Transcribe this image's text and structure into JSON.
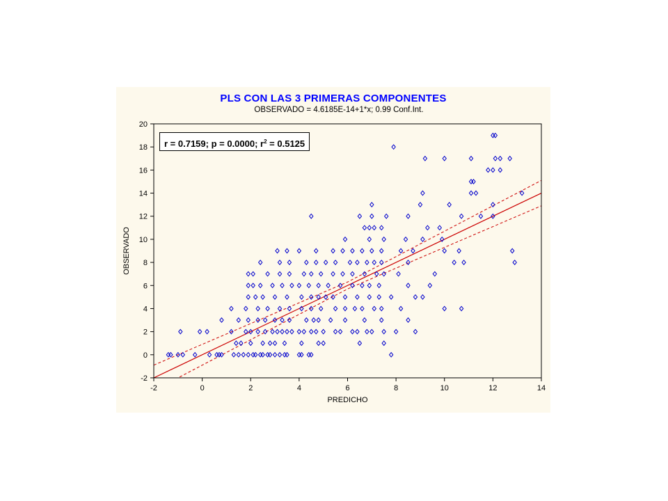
{
  "chart_data": {
    "type": "scatter",
    "title": "PLS CON LAS 3 PRIMERAS COMPONENTES",
    "subtitle": "OBSERVADO = 4.6185E-14+1*x; 0.99 Conf.Int.",
    "xlabel": "PREDICHO",
    "ylabel": "OBSERVADO",
    "xlim": [
      -2,
      14
    ],
    "ylim": [
      -2,
      20
    ],
    "xticks": [
      -2,
      0,
      2,
      4,
      6,
      8,
      10,
      12,
      14
    ],
    "yticks": [
      -2,
      0,
      2,
      4,
      6,
      8,
      10,
      12,
      14,
      16,
      18,
      20
    ],
    "stats": {
      "prefix": "r = 0.7159; p = 0.0000; r",
      "sup": "2",
      "suffix": " = 0.5125"
    },
    "regression": {
      "intercept": 0,
      "slope": 1
    },
    "conf_band": {
      "level": 0.99,
      "upper": [
        [
          -2,
          -0.9
        ],
        [
          6,
          6.3
        ],
        [
          14,
          15.1
        ]
      ],
      "lower": [
        [
          -2,
          -3.1
        ],
        [
          6,
          5.7
        ],
        [
          14,
          12.9
        ]
      ]
    },
    "grid": false,
    "colors": {
      "points": "#0000cc",
      "line": "#cc0000",
      "title": "#0000ff",
      "panel": "#fdf9ec"
    },
    "points": [
      [
        -1.4,
        0
      ],
      [
        -1.3,
        0
      ],
      [
        -1.0,
        0
      ],
      [
        -0.8,
        0
      ],
      [
        -0.3,
        0
      ],
      [
        0.3,
        0
      ],
      [
        0.6,
        0
      ],
      [
        0.7,
        0
      ],
      [
        0.8,
        0
      ],
      [
        1.3,
        0
      ],
      [
        1.5,
        0
      ],
      [
        1.7,
        0
      ],
      [
        1.9,
        0
      ],
      [
        2.1,
        0
      ],
      [
        2.2,
        0
      ],
      [
        2.4,
        0
      ],
      [
        2.5,
        0
      ],
      [
        2.7,
        0
      ],
      [
        2.8,
        0
      ],
      [
        3.0,
        0
      ],
      [
        3.2,
        0
      ],
      [
        3.4,
        0
      ],
      [
        3.5,
        0
      ],
      [
        4.0,
        0
      ],
      [
        4.1,
        0
      ],
      [
        4.4,
        0
      ],
      [
        4.5,
        0
      ],
      [
        7.8,
        0
      ],
      [
        -0.9,
        2
      ],
      [
        -0.1,
        2
      ],
      [
        0.2,
        2
      ],
      [
        1.2,
        2
      ],
      [
        1.8,
        2
      ],
      [
        2.0,
        2
      ],
      [
        2.3,
        2
      ],
      [
        2.6,
        2
      ],
      [
        2.9,
        2
      ],
      [
        3.1,
        2
      ],
      [
        3.3,
        2
      ],
      [
        3.5,
        2
      ],
      [
        3.7,
        2
      ],
      [
        4.0,
        2
      ],
      [
        4.2,
        2
      ],
      [
        4.5,
        2
      ],
      [
        4.7,
        2
      ],
      [
        5.0,
        2
      ],
      [
        5.5,
        2
      ],
      [
        5.7,
        2
      ],
      [
        6.2,
        2
      ],
      [
        6.4,
        2
      ],
      [
        6.8,
        2
      ],
      [
        7.0,
        2
      ],
      [
        7.5,
        2
      ],
      [
        8.0,
        2
      ],
      [
        8.8,
        2
      ],
      [
        1.4,
        1
      ],
      [
        1.6,
        1
      ],
      [
        2.0,
        1
      ],
      [
        2.5,
        1
      ],
      [
        2.8,
        1
      ],
      [
        3.0,
        1
      ],
      [
        3.4,
        1
      ],
      [
        4.1,
        1
      ],
      [
        4.8,
        1
      ],
      [
        5.0,
        1
      ],
      [
        6.5,
        1
      ],
      [
        7.5,
        1
      ],
      [
        0.8,
        3
      ],
      [
        1.5,
        3
      ],
      [
        1.9,
        3
      ],
      [
        2.3,
        3
      ],
      [
        2.6,
        3
      ],
      [
        3.0,
        3
      ],
      [
        3.3,
        3
      ],
      [
        3.6,
        3
      ],
      [
        4.3,
        3
      ],
      [
        4.6,
        3
      ],
      [
        4.8,
        3
      ],
      [
        5.3,
        3
      ],
      [
        5.9,
        3
      ],
      [
        6.7,
        3
      ],
      [
        7.4,
        3
      ],
      [
        8.5,
        3
      ],
      [
        1.2,
        4
      ],
      [
        1.8,
        4
      ],
      [
        2.3,
        4
      ],
      [
        2.7,
        4
      ],
      [
        3.2,
        4
      ],
      [
        3.6,
        4
      ],
      [
        4.1,
        4
      ],
      [
        4.5,
        4
      ],
      [
        4.9,
        4
      ],
      [
        5.5,
        4
      ],
      [
        5.9,
        4
      ],
      [
        6.3,
        4
      ],
      [
        6.6,
        4
      ],
      [
        7.1,
        4
      ],
      [
        7.4,
        4
      ],
      [
        8.2,
        4
      ],
      [
        10.0,
        4
      ],
      [
        10.7,
        4
      ],
      [
        1.9,
        5
      ],
      [
        2.2,
        5
      ],
      [
        2.5,
        5
      ],
      [
        3.0,
        5
      ],
      [
        3.5,
        5
      ],
      [
        4.1,
        5
      ],
      [
        4.5,
        5
      ],
      [
        4.8,
        5
      ],
      [
        5.1,
        5
      ],
      [
        5.4,
        5
      ],
      [
        5.9,
        5
      ],
      [
        6.4,
        5
      ],
      [
        6.9,
        5
      ],
      [
        7.3,
        5
      ],
      [
        7.8,
        5
      ],
      [
        8.8,
        5
      ],
      [
        9.1,
        5
      ],
      [
        1.9,
        6
      ],
      [
        2.1,
        6
      ],
      [
        2.4,
        6
      ],
      [
        2.9,
        6
      ],
      [
        3.3,
        6
      ],
      [
        3.7,
        6
      ],
      [
        4.0,
        6
      ],
      [
        4.4,
        6
      ],
      [
        4.8,
        6
      ],
      [
        5.2,
        6
      ],
      [
        5.7,
        6
      ],
      [
        6.2,
        6
      ],
      [
        6.6,
        6
      ],
      [
        6.9,
        6
      ],
      [
        7.3,
        6
      ],
      [
        8.5,
        6
      ],
      [
        9.4,
        6
      ],
      [
        1.9,
        7
      ],
      [
        2.1,
        7
      ],
      [
        2.7,
        7
      ],
      [
        3.2,
        7
      ],
      [
        3.6,
        7
      ],
      [
        4.2,
        7
      ],
      [
        4.5,
        7
      ],
      [
        4.9,
        7
      ],
      [
        5.4,
        7
      ],
      [
        5.8,
        7
      ],
      [
        6.2,
        7
      ],
      [
        6.7,
        7
      ],
      [
        7.2,
        7
      ],
      [
        7.5,
        7
      ],
      [
        8.1,
        7
      ],
      [
        9.6,
        7
      ],
      [
        2.4,
        8
      ],
      [
        3.2,
        8
      ],
      [
        3.6,
        8
      ],
      [
        4.3,
        8
      ],
      [
        4.7,
        8
      ],
      [
        5.1,
        8
      ],
      [
        5.5,
        8
      ],
      [
        6.1,
        8
      ],
      [
        6.4,
        8
      ],
      [
        6.8,
        8
      ],
      [
        7.1,
        8
      ],
      [
        7.4,
        8
      ],
      [
        8.5,
        8
      ],
      [
        10.4,
        8
      ],
      [
        10.8,
        8
      ],
      [
        12.9,
        8
      ],
      [
        3.1,
        9
      ],
      [
        3.5,
        9
      ],
      [
        4.0,
        9
      ],
      [
        4.7,
        9
      ],
      [
        5.4,
        9
      ],
      [
        5.8,
        9
      ],
      [
        6.2,
        9
      ],
      [
        6.6,
        9
      ],
      [
        7.0,
        9
      ],
      [
        7.4,
        9
      ],
      [
        8.2,
        9
      ],
      [
        8.7,
        9
      ],
      [
        10.0,
        9
      ],
      [
        10.6,
        9
      ],
      [
        12.8,
        9
      ],
      [
        5.9,
        10
      ],
      [
        6.9,
        10
      ],
      [
        7.5,
        10
      ],
      [
        8.4,
        10
      ],
      [
        9.1,
        10
      ],
      [
        9.9,
        10
      ],
      [
        6.7,
        11
      ],
      [
        6.9,
        11
      ],
      [
        7.1,
        11
      ],
      [
        7.4,
        11
      ],
      [
        9.3,
        11
      ],
      [
        9.8,
        11
      ],
      [
        6.5,
        12
      ],
      [
        7.0,
        12
      ],
      [
        7.6,
        12
      ],
      [
        8.5,
        12
      ],
      [
        4.5,
        12
      ],
      [
        10.7,
        12
      ],
      [
        11.5,
        12
      ],
      [
        12.0,
        12
      ],
      [
        7.0,
        13
      ],
      [
        9.0,
        13
      ],
      [
        10.2,
        13
      ],
      [
        12.0,
        13
      ],
      [
        9.1,
        14
      ],
      [
        11.1,
        14
      ],
      [
        11.3,
        14
      ],
      [
        13.2,
        14
      ],
      [
        11.1,
        15
      ],
      [
        11.2,
        15
      ],
      [
        11.8,
        16
      ],
      [
        12.0,
        16
      ],
      [
        12.3,
        16
      ],
      [
        9.2,
        17
      ],
      [
        10.0,
        17
      ],
      [
        11.1,
        17
      ],
      [
        12.1,
        17
      ],
      [
        12.3,
        17
      ],
      [
        12.7,
        17
      ],
      [
        7.9,
        18
      ],
      [
        12.0,
        19
      ],
      [
        12.1,
        19
      ]
    ]
  }
}
